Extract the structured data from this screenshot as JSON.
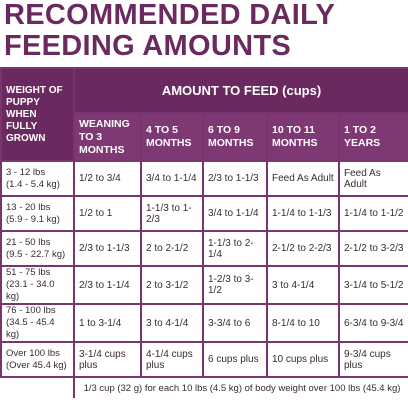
{
  "title": {
    "lines": [
      "RECOMMENDED DAILY",
      "FEEDING AMOUNTS"
    ]
  },
  "table": {
    "corner_header": "WEIGHT OF PUPPY WHEN FULLY GROWN",
    "group_header": "AMOUNT TO FEED (cups)",
    "columns": [
      "WEANING TO 3 MONTHS",
      "4 TO 5 MONTHS",
      "6 TO 9 MONTHS",
      "10 TO 11 MONTHS",
      "1 TO 2 YEARS"
    ],
    "rows": [
      {
        "weight": [
          "3 - 12 lbs",
          "(1.4 - 5.4 kg)"
        ],
        "amounts": [
          "1/2 to 3/4",
          "3/4 to 1-1/4",
          "2/3 to 1-1/3",
          "Feed As Adult",
          "Feed As Adult"
        ]
      },
      {
        "weight": [
          "13 - 20 lbs",
          "(5.9 - 9.1 kg)"
        ],
        "amounts": [
          "1/2 to 1",
          "1-1/3 to 1-2/3",
          "3/4 to 1-1/4",
          "1-1/4 to 1-1/3",
          "1-1/4 to 1-1/2"
        ]
      },
      {
        "weight": [
          "21 - 50 lbs",
          "(9.5 - 22.7 kg)"
        ],
        "amounts": [
          "2/3 to 1-1/3",
          "2 to 2-1/2",
          "1-1/3 to 2-1/4",
          "2-1/2 to 2-2/3",
          "2-1/2 to 3-2/3"
        ]
      },
      {
        "weight": [
          "51 - 75 lbs",
          "(23.1 - 34.0 kg)"
        ],
        "amounts": [
          "2/3 to 1-1/4",
          "2 to 3-1/2",
          "1-2/3 to 3-1/2",
          "3 to 4-1/4",
          "3-1/4 to 5-1/2"
        ]
      },
      {
        "weight": [
          "76 - 100 lbs",
          "(34.5 - 45.4 kg)"
        ],
        "amounts": [
          "1 to 3-1/4",
          "3 to 4-1/4",
          "3-3/4 to 6",
          "8-1/4 to 10",
          "6-3/4 to 9-3/4"
        ]
      },
      {
        "weight": [
          "Over 100 lbs",
          "(Over 45.4 kg)"
        ],
        "amounts": [
          "3-1/4 cups plus",
          "4-1/4 cups plus",
          "6 cups plus",
          "10 cups plus",
          "9-3/4 cups plus"
        ]
      }
    ],
    "footnote": "1/3 cup (32 g) for each 10 lbs (4.5 kg) of body weight over 100 lbs (45.4 kg)"
  }
}
